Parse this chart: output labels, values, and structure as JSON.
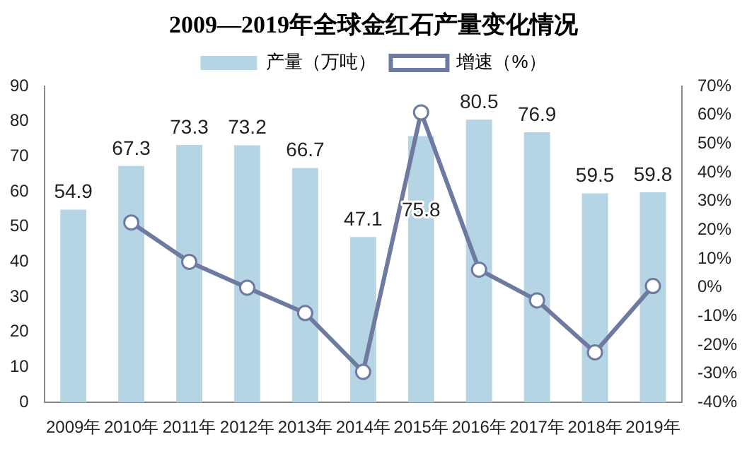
{
  "chart_data": {
    "type": "bar",
    "title": "2009—2019年全球金红石产量变化情况",
    "categories": [
      "2009年",
      "2010年",
      "2011年",
      "2012年",
      "2013年",
      "2014年",
      "2015年",
      "2016年",
      "2017年",
      "2018年",
      "2019年"
    ],
    "series": [
      {
        "name": "产量（万吨）",
        "color": "#b5d5e5",
        "values": [
          54.9,
          67.3,
          73.3,
          73.2,
          66.7,
          47.1,
          75.8,
          80.5,
          76.9,
          59.5,
          59.8
        ],
        "value_labels": [
          "54.9",
          "67.3",
          "73.3",
          "73.2",
          "66.7",
          "47.1",
          "75.8",
          "80.5",
          "76.9",
          "59.5",
          "59.8"
        ]
      },
      {
        "name": "增速（%）",
        "type": "line",
        "axis": "y2",
        "color": "#6e7aa0",
        "values": [
          null,
          22.6,
          8.9,
          -0.1,
          -8.9,
          -29.4,
          60.9,
          6.2,
          -4.5,
          -22.6,
          0.5
        ]
      }
    ],
    "ylim": [
      0,
      90
    ],
    "yticks": [
      0,
      10,
      20,
      30,
      40,
      50,
      60,
      70,
      80,
      90
    ],
    "y2lim": [
      -40,
      70
    ],
    "y2ticks": [
      {
        "value": -40,
        "label": "-40%"
      },
      {
        "value": -30,
        "label": "-30%"
      },
      {
        "value": -20,
        "label": "-20%"
      },
      {
        "value": -10,
        "label": "-10%"
      },
      {
        "value": 0,
        "label": "0%"
      },
      {
        "value": 10,
        "label": "10%"
      },
      {
        "value": 20,
        "label": "20%"
      },
      {
        "value": 30,
        "label": "30%"
      },
      {
        "value": 40,
        "label": "40%"
      },
      {
        "value": 50,
        "label": "50%"
      },
      {
        "value": 60,
        "label": "60%"
      },
      {
        "value": 70,
        "label": "70%"
      }
    ],
    "grid": false,
    "legend": "top",
    "marker": "circle",
    "line_style": "solid"
  }
}
